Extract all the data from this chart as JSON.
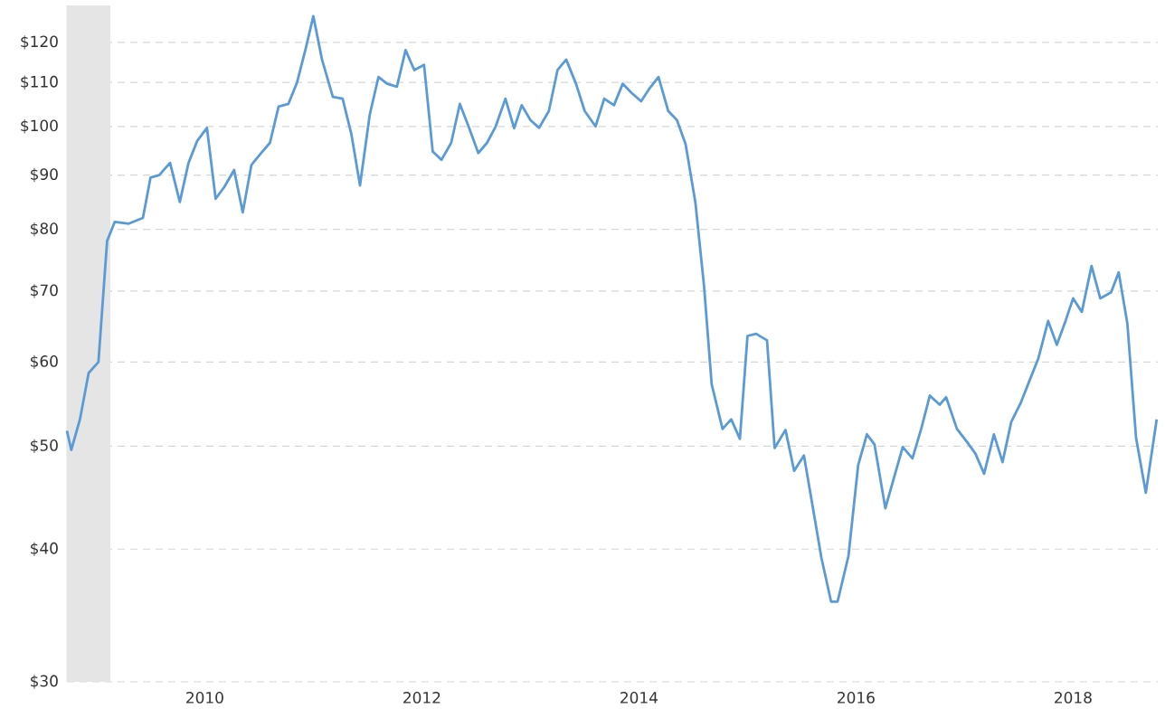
{
  "chart_data": {
    "type": "line",
    "log": "y",
    "grid": "y",
    "line_style": "solid",
    "xlim": [
      2008.73,
      2018.78
    ],
    "ylim": [
      30,
      130
    ],
    "xticks": [
      2010,
      2012,
      2014,
      2016,
      2018
    ],
    "yticks": [
      {
        "value": 30,
        "label": "$30"
      },
      {
        "value": 40,
        "label": "$40"
      },
      {
        "value": 50,
        "label": "$50"
      },
      {
        "value": 60,
        "label": "$60"
      },
      {
        "value": 70,
        "label": "$70"
      },
      {
        "value": 80,
        "label": "$80"
      },
      {
        "value": 90,
        "label": "$90"
      },
      {
        "value": 100,
        "label": "$100"
      },
      {
        "value": 110,
        "label": "$110"
      },
      {
        "value": 120,
        "label": "$120"
      }
    ],
    "bands": [
      {
        "axis": "x",
        "from": 2008.73,
        "to": 2009.13,
        "color": "#e5e5e5"
      }
    ],
    "series": [
      {
        "color": "#5b9bd5",
        "x": [
          2008.73,
          2008.77,
          2008.85,
          2008.93,
          2009.02,
          2009.1,
          2009.17,
          2009.3,
          2009.43,
          2009.5,
          2009.58,
          2009.68,
          2009.77,
          2009.85,
          2009.93,
          2010.02,
          2010.1,
          2010.18,
          2010.27,
          2010.35,
          2010.43,
          2010.52,
          2010.6,
          2010.68,
          2010.77,
          2010.85,
          2010.93,
          2011.0,
          2011.08,
          2011.18,
          2011.27,
          2011.35,
          2011.43,
          2011.52,
          2011.6,
          2011.68,
          2011.77,
          2011.85,
          2011.93,
          2012.02,
          2012.1,
          2012.18,
          2012.27,
          2012.35,
          2012.43,
          2012.52,
          2012.6,
          2012.68,
          2012.77,
          2012.85,
          2012.92,
          2013.0,
          2013.08,
          2013.17,
          2013.25,
          2013.33,
          2013.42,
          2013.5,
          2013.6,
          2013.68,
          2013.77,
          2013.85,
          2013.93,
          2014.02,
          2014.1,
          2014.18,
          2014.27,
          2014.35,
          2014.43,
          2014.52,
          2014.6,
          2014.67,
          2014.77,
          2014.85,
          2014.93,
          2015.0,
          2015.08,
          2015.18,
          2015.25,
          2015.35,
          2015.43,
          2015.52,
          2015.6,
          2015.68,
          2015.77,
          2015.83,
          2015.93,
          2016.02,
          2016.1,
          2016.17,
          2016.27,
          2016.35,
          2016.43,
          2016.52,
          2016.6,
          2016.68,
          2016.77,
          2016.83,
          2016.93,
          2017.02,
          2017.1,
          2017.18,
          2017.27,
          2017.35,
          2017.43,
          2017.52,
          2017.6,
          2017.68,
          2017.77,
          2017.85,
          2017.93,
          2018.0,
          2018.08,
          2018.17,
          2018.25,
          2018.35,
          2018.42,
          2018.5,
          2018.58,
          2018.67,
          2018.77
        ],
        "values": [
          51.7,
          49.6,
          53,
          58.6,
          60,
          78,
          81.3,
          81,
          82,
          89.5,
          90,
          92.4,
          84.9,
          92.4,
          96.9,
          99.7,
          85.5,
          87.7,
          91,
          83,
          92,
          94.4,
          96.5,
          104.4,
          105,
          110,
          118.4,
          127,
          115.6,
          106.6,
          106.2,
          98.4,
          88,
          102.6,
          111.3,
          109.7,
          109,
          118,
          113,
          114.3,
          94.7,
          93,
          96.5,
          105,
          100,
          94.4,
          96.5,
          100,
          106.2,
          99.6,
          104.7,
          101.4,
          99.7,
          103.4,
          113,
          115.6,
          109.7,
          103.4,
          100,
          106.2,
          104.7,
          109.7,
          107.6,
          105.6,
          108.7,
          111.3,
          103.4,
          101.4,
          96.2,
          84.8,
          70.7,
          57.2,
          51.9,
          53,
          50.8,
          63.5,
          63.8,
          62.9,
          49.8,
          51.8,
          47.4,
          49,
          43.9,
          39.3,
          35.7,
          35.7,
          39.4,
          48,
          51.3,
          50.2,
          43.7,
          46.7,
          49.9,
          48.7,
          51.9,
          55.8,
          54.7,
          55.6,
          51.9,
          50.5,
          49.2,
          47.1,
          51.3,
          48.3,
          52.7,
          55,
          57.7,
          60.5,
          65.6,
          62.3,
          65.6,
          68.9,
          66.9,
          73.9,
          68.9,
          69.8,
          72.9,
          65.2,
          50.9,
          45.2,
          53
        ]
      }
    ]
  }
}
